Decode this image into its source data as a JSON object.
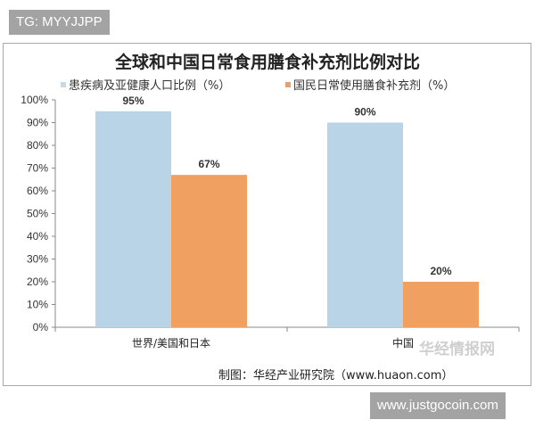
{
  "tags": {
    "top_left": "TG: MYYJJPP",
    "bottom_right": "www.justgocoin.com"
  },
  "credit": "制图：华经产业研究院（www.huaon.com）",
  "watermark": "华经情报网",
  "chart_data": {
    "type": "bar",
    "title": "全球和中国日常食用膳食补充剂比例对比",
    "categories": [
      "世界/美国和日本",
      "中国"
    ],
    "series": [
      {
        "name": "患疾病及亚健康人口比例（%）",
        "values": [
          95,
          90
        ],
        "labels": [
          "95%",
          "90%"
        ],
        "color": "#b8d4e6"
      },
      {
        "name": "国民日常使用膳食补充剂（%）",
        "values": [
          67,
          20
        ],
        "labels": [
          "67%",
          "20%"
        ],
        "color": "#f0a060"
      }
    ],
    "ylim": [
      0,
      100
    ],
    "yticks": [
      "0%",
      "10%",
      "20%",
      "30%",
      "40%",
      "50%",
      "60%",
      "70%",
      "80%",
      "90%",
      "100%"
    ],
    "legend": "top",
    "grid": false
  }
}
